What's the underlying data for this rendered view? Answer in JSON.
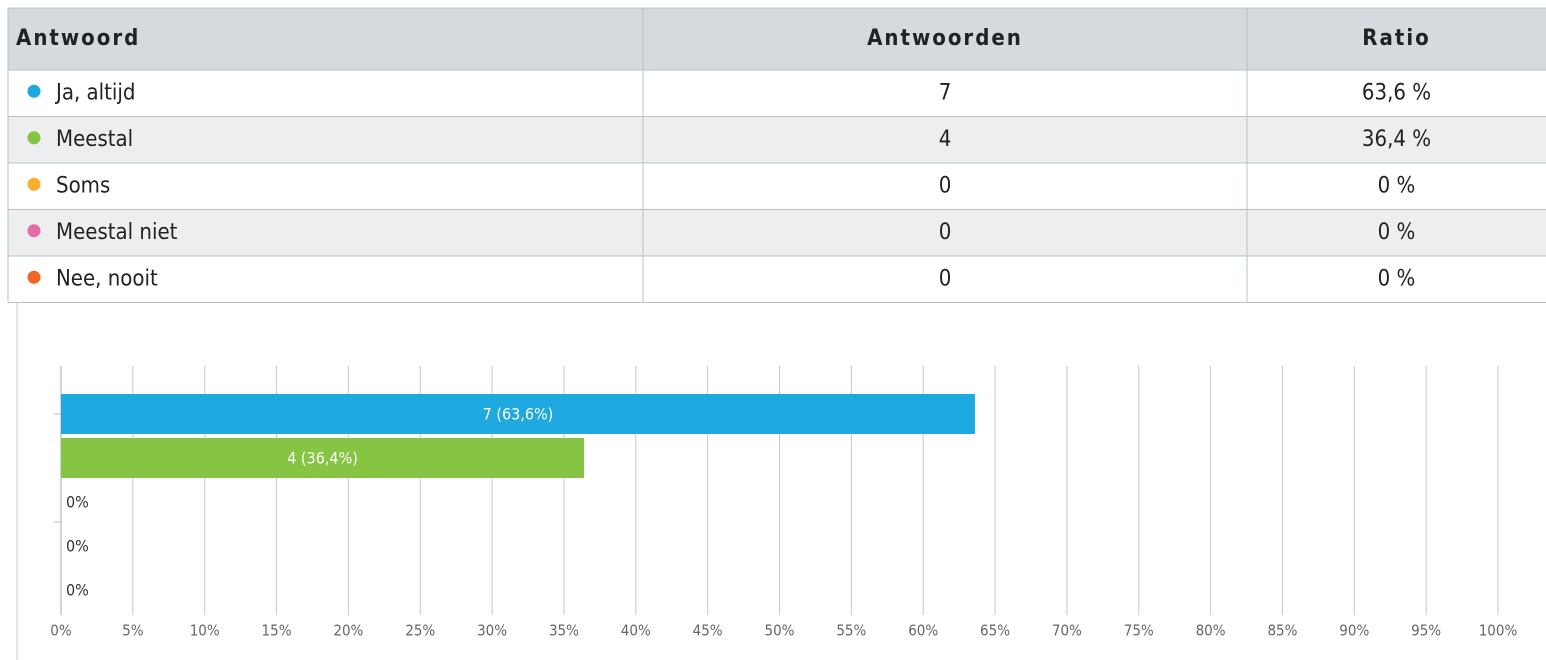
{
  "table": {
    "header": [
      "Antwoord",
      "Antwoorden",
      "Ratio"
    ],
    "rows": [
      [
        "Ja, altijd",
        7,
        "63,6 %"
      ],
      [
        "Meestal",
        4,
        "36,4 %"
      ],
      [
        "Soms",
        0,
        "0 %"
      ],
      [
        "Meestal niet",
        0,
        "0 %"
      ],
      [
        "Nee, nooit",
        0,
        "0 %"
      ]
    ]
  },
  "chart_data": {
    "type": "hbar",
    "categories": [
      null,
      null,
      null,
      null,
      null
    ],
    "values": [
      63.6,
      36.4,
      0,
      0,
      0
    ],
    "value_labels": [
      "7 (63,6%)",
      "4 (36,4%)",
      "0%",
      "0%",
      "0%"
    ],
    "colors": [
      "#1ea9e1",
      "#86c443",
      "#fbad2c",
      "#e86ba8",
      "#f26522"
    ],
    "xlim": [
      0,
      100
    ],
    "xticks": [
      {
        "value": 0,
        "label": "0%"
      },
      {
        "value": 5,
        "label": "5%"
      },
      {
        "value": 10,
        "label": "10%"
      },
      {
        "value": 15,
        "label": "15%"
      },
      {
        "value": 20,
        "label": "20%"
      },
      {
        "value": 25,
        "label": "25%"
      },
      {
        "value": 30,
        "label": "30%"
      },
      {
        "value": 35,
        "label": "35%"
      },
      {
        "value": 40,
        "label": "40%"
      },
      {
        "value": 45,
        "label": "45%"
      },
      {
        "value": 50,
        "label": "50%"
      },
      {
        "value": 55,
        "label": "55%"
      },
      {
        "value": 60,
        "label": "60%"
      },
      {
        "value": 65,
        "label": "65%"
      },
      {
        "value": 70,
        "label": "70%"
      },
      {
        "value": 75,
        "label": "75%"
      },
      {
        "value": 80,
        "label": "80%"
      },
      {
        "value": 85,
        "label": "85%"
      },
      {
        "value": 90,
        "label": "90%"
      },
      {
        "value": 95,
        "label": "95%"
      },
      {
        "value": 100,
        "label": "100%"
      }
    ],
    "grid": true
  }
}
